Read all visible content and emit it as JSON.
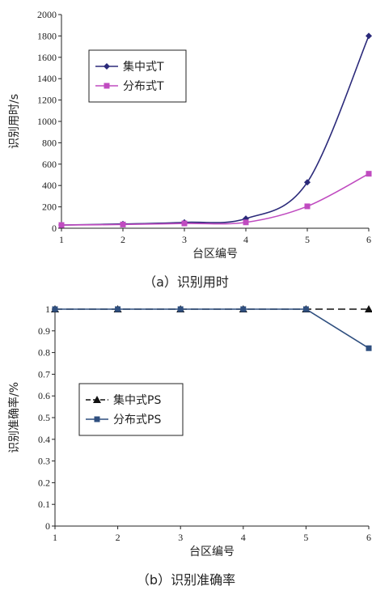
{
  "chart_data": [
    {
      "type": "line",
      "caption": "（a）识别用时",
      "xlabel": "台区编号",
      "ylabel": "识别用时/s",
      "categories": [
        "1",
        "2",
        "3",
        "4",
        "5",
        "6"
      ],
      "yticks": [
        "0",
        "200",
        "400",
        "600",
        "800",
        "1000",
        "1200",
        "1400",
        "1600",
        "1800",
        "2000"
      ],
      "ylim": [
        0,
        2000
      ],
      "grid": false,
      "legend": "top-left",
      "series": [
        {
          "name": "集中式T",
          "values": [
            30,
            40,
            55,
            90,
            430,
            1800
          ],
          "color": "#2b2a7a",
          "marker": "diamond"
        },
        {
          "name": "分布式T",
          "values": [
            30,
            35,
            45,
            55,
            205,
            510
          ],
          "color": "#c04bc0",
          "marker": "square"
        }
      ]
    },
    {
      "type": "line",
      "caption": "（b）识别准确率",
      "xlabel": "台区编号",
      "ylabel": "识别准确率/%",
      "categories": [
        "1",
        "2",
        "3",
        "4",
        "5",
        "6"
      ],
      "yticks": [
        "0",
        "0.1",
        "0.2",
        "0.3",
        "0.4",
        "0.5",
        "0.6",
        "0.7",
        "0.8",
        "0.9",
        "1"
      ],
      "ylim": [
        0,
        1
      ],
      "grid": false,
      "legend": "middle-left",
      "series": [
        {
          "name": "集中式PS",
          "values": [
            1,
            1,
            1,
            1,
            1,
            1
          ],
          "color": "#111111",
          "marker": "triangle",
          "dashed": true
        },
        {
          "name": "分布式PS",
          "values": [
            1,
            1,
            1,
            1,
            1,
            0.82
          ],
          "color": "#2f4f7f",
          "marker": "square"
        }
      ]
    }
  ]
}
